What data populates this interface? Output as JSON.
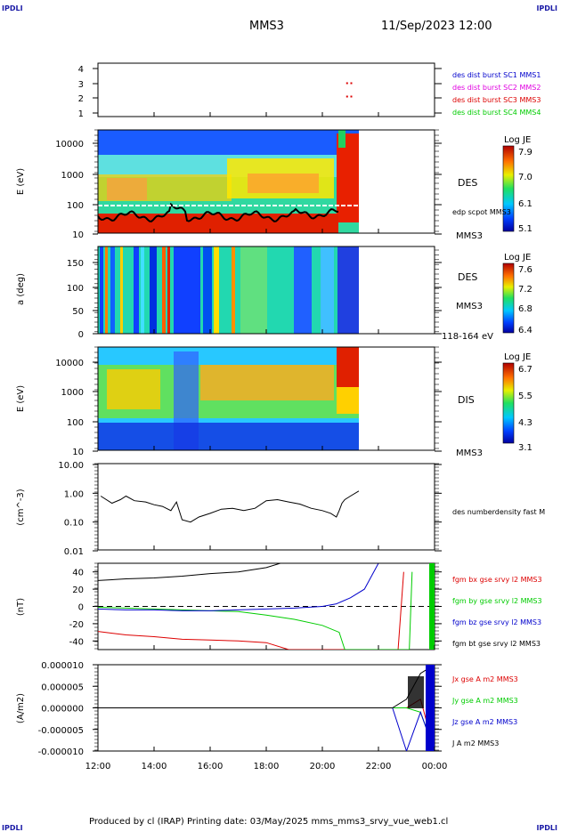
{
  "header": {
    "corner_left": "IPDLI",
    "corner_right": "IPDLI",
    "spacecraft": "MMS3",
    "datetime": "11/Sep/2023 12:00"
  },
  "footer": {
    "text": "Produced by cl (IRAP)   Printing date: 03/May/2025   mms_mms3_srvy_vue_web1.cl",
    "corner_left": "IPDLI",
    "corner_right": "IPDLI"
  },
  "time_axis": {
    "labels": [
      "12:00",
      "14:00",
      "16:00",
      "18:00",
      "20:00",
      "22:00",
      "00:00"
    ],
    "range_hours": [
      12,
      24
    ]
  },
  "colors": {
    "blue": "#0000cc",
    "magenta": "#e000e0",
    "red": "#dd0000",
    "green": "#00cc00",
    "black": "#000000"
  },
  "panels": {
    "burst": {
      "ylabels": [
        "4",
        "3",
        "2",
        "1"
      ],
      "legend": [
        "des dist burst SC1 MMS1",
        "des dist burst SC2 MMS2",
        "des dist burst SC3 MMS3",
        "des dist burst SC4 MMS4"
      ]
    },
    "des_energy": {
      "ylabel": "E (eV)",
      "ticks": [
        "10000",
        "1000",
        "100",
        "10"
      ],
      "instrument": "DES",
      "overlay_label": "edp scpot MMS3",
      "sc_label": "MMS3",
      "cbar_title": "Log JE",
      "cbar_ticks": [
        "7.9",
        "7.0",
        "6.1",
        "5.1"
      ]
    },
    "des_pitch": {
      "ylabel": "a (deg)",
      "ticks": [
        "150",
        "100",
        "50",
        "0"
      ],
      "instrument": "DES",
      "sc_label": "MMS3",
      "range_label": "118-164 eV",
      "cbar_title": "Log JE",
      "cbar_ticks": [
        "7.6",
        "7.2",
        "6.8",
        "6.4"
      ]
    },
    "dis_energy": {
      "ylabel": "E (eV)",
      "ticks": [
        "10000",
        "1000",
        "100",
        "10"
      ],
      "instrument": "DIS",
      "sc_label": "MMS3",
      "cbar_title": "Log JE",
      "cbar_ticks": [
        "6.7",
        "5.5",
        "4.3",
        "3.1"
      ]
    },
    "density": {
      "ylabel": "(cm^-3)",
      "ticks": [
        "10.00",
        "1.00",
        "0.10",
        "0.01"
      ],
      "legend": "des numberdensity fast M"
    },
    "bfield": {
      "ylabel": "(nT)",
      "ticks": [
        "40",
        "20",
        "0",
        "-20",
        "-40"
      ],
      "legend": [
        "fgm bx gse srvy l2 MMS3",
        "fgm by gse srvy l2 MMS3",
        "fgm bz gse srvy l2 MMS3",
        "fgm bt gse srvy l2 MMS3"
      ]
    },
    "current": {
      "ylabel": "(A/m2)",
      "ticks": [
        "0.000010",
        "0.000005",
        "0.000000",
        "-0.000005",
        "-0.000010"
      ],
      "legend": [
        "Jx gse A m2 MMS3",
        "Jy gse A m2 MMS3",
        "Jz gse A m2 MMS3",
        "J A m2 MMS3"
      ]
    }
  },
  "chart_data": [
    {
      "type": "scatter",
      "title": "des dist burst",
      "series": [
        {
          "name": "des dist burst SC3 MMS3",
          "x": [
            20.85,
            21.0
          ],
          "y": [
            3,
            3
          ]
        },
        {
          "name": "des dist burst SC3 MMS3",
          "x": [
            20.85,
            21.0
          ],
          "y": [
            2,
            2
          ]
        }
      ],
      "ylim": [
        0.5,
        4.5
      ]
    },
    {
      "type": "line",
      "ylabel": "(cm^-3)",
      "yscale": "log",
      "ylim": [
        0.01,
        10
      ],
      "series": [
        {
          "name": "des numberdensity fast M",
          "x": [
            12.1,
            12.5,
            12.8,
            13.0,
            13.3,
            13.7,
            14.0,
            14.3,
            14.6,
            14.8,
            15.0,
            15.3,
            15.6,
            16.0,
            16.4,
            16.8,
            17.2,
            17.6,
            18.0,
            18.4,
            18.8,
            19.2,
            19.6,
            20.0,
            20.3,
            20.5,
            20.6,
            20.7,
            20.8,
            21.0,
            21.3
          ],
          "y": [
            0.8,
            0.45,
            0.6,
            0.8,
            0.55,
            0.5,
            0.4,
            0.35,
            0.25,
            0.5,
            0.12,
            0.1,
            0.15,
            0.2,
            0.28,
            0.3,
            0.25,
            0.3,
            0.55,
            0.6,
            0.5,
            0.42,
            0.3,
            0.25,
            0.2,
            0.15,
            0.25,
            0.45,
            0.6,
            0.8,
            1.2
          ]
        }
      ]
    },
    {
      "type": "line",
      "ylabel": "(nT)",
      "ylim": [
        -50,
        50
      ],
      "series": [
        {
          "name": "fgm bx gse srvy l2 MMS3",
          "x": [
            12.0,
            13.0,
            14.0,
            15.0,
            16.0,
            17.0,
            18.0,
            18.8,
            22.7,
            22.9
          ],
          "y": [
            -29,
            -33,
            -35,
            -38,
            -39,
            -40,
            -42,
            -50,
            -50,
            40
          ]
        },
        {
          "name": "fgm by gse srvy l2 MMS3",
          "x": [
            12.0,
            13.0,
            14.0,
            15.0,
            16.0,
            17.0,
            18.0,
            19.0,
            20.0,
            20.6,
            20.8,
            23.1,
            23.2
          ],
          "y": [
            -1,
            -2,
            -3,
            -4,
            -5,
            -6,
            -10,
            -15,
            -22,
            -30,
            -50,
            -50,
            40
          ]
        },
        {
          "name": "fgm bz gse srvy l2 MMS3",
          "x": [
            12.0,
            13.0,
            14.0,
            15.0,
            16.0,
            17.0,
            18.0,
            19.0,
            20.0,
            20.5,
            21.0,
            21.5,
            22.0
          ],
          "y": [
            -3,
            -4,
            -4,
            -5,
            -5,
            -4,
            -3,
            -2,
            0,
            3,
            10,
            20,
            50
          ]
        },
        {
          "name": "fgm bt gse srvy l2 MMS3",
          "x": [
            12.0,
            13.0,
            14.0,
            15.0,
            16.0,
            17.0,
            18.0,
            18.5,
            18.6,
            23.9
          ],
          "y": [
            30,
            32,
            33,
            35,
            38,
            40,
            45,
            50,
            50,
            50
          ]
        }
      ]
    },
    {
      "type": "line",
      "ylabel": "(A/m2)",
      "ylim": [
        -1e-05,
        1e-05
      ],
      "series": [
        {
          "name": "Jx gse A m2 MMS3",
          "x": [
            12.0,
            22.5,
            23.0,
            23.5,
            24.0
          ],
          "y": [
            0,
            0,
            0,
            2e-06,
            -1e-05
          ]
        },
        {
          "name": "Jy gse A m2 MMS3",
          "x": [
            12.0,
            22.5,
            23.0,
            23.5,
            24.0
          ],
          "y": [
            0,
            0,
            0,
            -1e-06,
            -1e-05
          ]
        },
        {
          "name": "Jz gse A m2 MMS3",
          "x": [
            12.0,
            22.5,
            23.0,
            23.5,
            24.0
          ],
          "y": [
            0,
            0,
            -1e-05,
            -1e-06,
            -1e-05
          ]
        },
        {
          "name": "J A m2 MMS3",
          "x": [
            12.0,
            22.5,
            23.0,
            23.5,
            24.0
          ],
          "y": [
            0,
            0,
            2e-06,
            8e-06,
            1e-05
          ]
        }
      ]
    }
  ]
}
